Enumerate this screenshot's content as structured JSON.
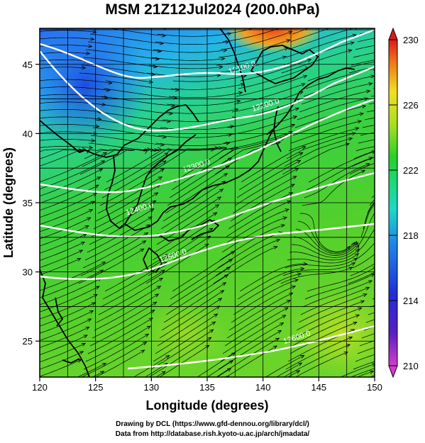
{
  "title": "MSM 21Z12Jul2024 (200.0hPa)",
  "x_axis": {
    "label": "Longitude (degrees)",
    "ticks": [
      120,
      125,
      130,
      135,
      140,
      145,
      150
    ],
    "range": [
      120,
      150
    ]
  },
  "y_axis": {
    "label": "Latitude  (degrees)",
    "ticks": [
      25,
      30,
      35,
      40,
      45
    ],
    "range": [
      22.4,
      47.6
    ]
  },
  "colorbar": {
    "ticks": [
      210,
      214,
      218,
      222,
      226,
      230
    ],
    "range": [
      210,
      230
    ]
  },
  "contours": [
    {
      "label": "12100.0",
      "lon": 138.2,
      "lat": 44.6
    },
    {
      "label": "12200.0",
      "lon": 140.3,
      "lat": 41.9
    },
    {
      "label": "12300.0",
      "lon": 134.1,
      "lat": 37.5
    },
    {
      "label": "12400.0",
      "lon": 129.0,
      "lat": 34.4
    },
    {
      "label": "12500.0",
      "lon": 132.0,
      "lat": 31.0
    },
    {
      "label": "12600.0",
      "lon": 143.1,
      "lat": 25.1
    }
  ],
  "credits": [
    "Drawing by DCL (https://www.gfd-dennou.org/library/dcl/)",
    "Data from http://database.rish.kyoto-u.ac.jp/arch/jmadata/"
  ]
}
